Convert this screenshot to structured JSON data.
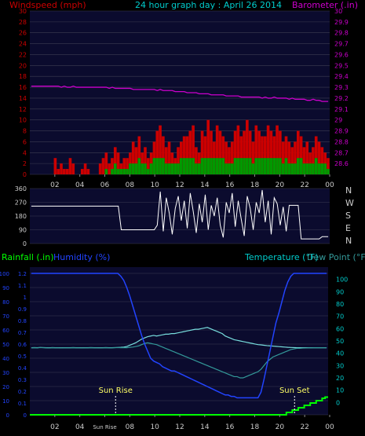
{
  "top": {
    "left_axis_label": "Windspeed (mph)",
    "title": "24 hour graph day : April 26 2014",
    "right_axis_label": "Barometer (.in)"
  },
  "bottom": {
    "rain_label": "Rainfall (.in)",
    "humidity_label": "Humidity (%)",
    "temp_label": "Temperature (°F)",
    "dew_label": "Dew Point (°F)",
    "sunrise_label": "Sun Rise",
    "sunset_label": "Sun Set"
  },
  "x_ticks": [
    "02",
    "04",
    "06",
    "08",
    "10",
    "12",
    "14",
    "16",
    "18",
    "20",
    "22",
    "00"
  ],
  "x_tick_special": "Sun Rise",
  "colors": {
    "bg": "#000000",
    "plot_bg": "#0b0b2e",
    "grid": "#3c3c52",
    "wind_label": "#cc0000",
    "title": "#00cccc",
    "baro": "#cc00cc",
    "wind_gust": "#cc0000",
    "wind_avg": "#009900",
    "direction": "#ffffff",
    "rain": "#00ff00",
    "humidity": "#0000cc",
    "humidity_line": "#2244ff",
    "temperature": "#77dddd",
    "dew": "#339999",
    "temp_axis": "#00cccc",
    "axis_text": "#cccccc"
  },
  "chart_data": [
    {
      "type": "area",
      "name": "wind",
      "xlabel": "",
      "ylabel": "Windspeed (mph)",
      "ylim": [
        0,
        30
      ],
      "yticks": [
        0,
        2,
        4,
        6,
        8,
        10,
        12,
        14,
        16,
        18,
        20,
        22,
        24,
        26,
        28,
        30
      ],
      "y2label": "Barometer (.in)",
      "y2lim": [
        28.5,
        30.0
      ],
      "y2ticks": [
        "28.6",
        "28.7",
        "28.8",
        "28.9",
        "29",
        "29.1",
        "29.2",
        "29.3",
        "29.4",
        "29.5",
        "29.6",
        "29.7",
        "29.8",
        "29.9",
        "30"
      ],
      "gust_mph": [
        0,
        0,
        0,
        0,
        0,
        0,
        0,
        0,
        3,
        1,
        2,
        1,
        1,
        3,
        2,
        0,
        0,
        1,
        2,
        1,
        0,
        0,
        0,
        2,
        3,
        4,
        2,
        3,
        5,
        4,
        2,
        3,
        3,
        4,
        6,
        5,
        7,
        4,
        5,
        3,
        4,
        6,
        8,
        9,
        7,
        5,
        6,
        4,
        3,
        5,
        6,
        7,
        7,
        8,
        9,
        5,
        4,
        8,
        7,
        10,
        8,
        6,
        9,
        8,
        7,
        6,
        5,
        6,
        8,
        9,
        7,
        8,
        10,
        8,
        6,
        9,
        8,
        7,
        7,
        9,
        8,
        7,
        9,
        8,
        6,
        7,
        6,
        5,
        6,
        8,
        7,
        5,
        6,
        4,
        5,
        7,
        6,
        5,
        4,
        3
      ],
      "avg_mph": [
        0,
        0,
        0,
        0,
        0,
        0,
        0,
        0,
        0,
        0,
        0,
        0,
        0,
        0,
        0,
        0,
        0,
        0,
        0,
        0,
        0,
        0,
        0,
        0,
        0,
        1,
        0,
        1,
        2,
        1,
        1,
        1,
        1,
        2,
        2,
        2,
        3,
        2,
        2,
        1,
        2,
        3,
        3,
        3,
        3,
        2,
        2,
        2,
        2,
        2,
        3,
        3,
        3,
        3,
        3,
        2,
        2,
        3,
        3,
        3,
        3,
        3,
        3,
        3,
        3,
        2,
        2,
        2,
        3,
        3,
        3,
        3,
        3,
        3,
        2,
        3,
        3,
        3,
        3,
        3,
        3,
        3,
        3,
        3,
        2,
        3,
        2,
        2,
        2,
        3,
        3,
        2,
        2,
        2,
        2,
        3,
        2,
        2,
        2,
        1
      ],
      "barometer_in": [
        29.31,
        29.31,
        29.31,
        29.31,
        29.31,
        29.31,
        29.31,
        29.31,
        29.31,
        29.31,
        29.3,
        29.31,
        29.3,
        29.3,
        29.31,
        29.3,
        29.3,
        29.3,
        29.3,
        29.3,
        29.3,
        29.3,
        29.3,
        29.3,
        29.3,
        29.3,
        29.29,
        29.3,
        29.29,
        29.29,
        29.29,
        29.29,
        29.29,
        29.29,
        29.28,
        29.28,
        29.28,
        29.28,
        29.28,
        29.28,
        29.28,
        29.28,
        29.27,
        29.28,
        29.27,
        29.27,
        29.27,
        29.27,
        29.26,
        29.26,
        29.26,
        29.26,
        29.25,
        29.25,
        29.25,
        29.25,
        29.24,
        29.24,
        29.24,
        29.24,
        29.23,
        29.23,
        29.23,
        29.23,
        29.23,
        29.22,
        29.22,
        29.22,
        29.22,
        29.22,
        29.21,
        29.21,
        29.21,
        29.21,
        29.21,
        29.21,
        29.21,
        29.2,
        29.21,
        29.2,
        29.2,
        29.21,
        29.2,
        29.2,
        29.2,
        29.2,
        29.19,
        29.2,
        29.19,
        29.19,
        29.19,
        29.19,
        29.18,
        29.18,
        29.19,
        29.18,
        29.18,
        29.17,
        29.17,
        29.17
      ]
    },
    {
      "type": "line",
      "name": "wind direction",
      "ylim": [
        0,
        360
      ],
      "yticks": [
        0,
        90,
        180,
        270,
        360
      ],
      "right_labels": [
        "N",
        "W",
        "S",
        "E",
        "N"
      ],
      "direction_deg": [
        245,
        245,
        245,
        245,
        245,
        245,
        245,
        245,
        245,
        245,
        245,
        245,
        245,
        245,
        245,
        245,
        245,
        245,
        245,
        245,
        245,
        245,
        245,
        245,
        245,
        245,
        245,
        245,
        245,
        245,
        90,
        90,
        90,
        90,
        90,
        90,
        90,
        90,
        90,
        90,
        90,
        90,
        120,
        340,
        80,
        300,
        200,
        60,
        230,
        310,
        150,
        280,
        100,
        330,
        210,
        70,
        260,
        140,
        320,
        90,
        250,
        180,
        300,
        120,
        40,
        270,
        200,
        330,
        110,
        280,
        160,
        50,
        310,
        230,
        90,
        270,
        200,
        350,
        140,
        280,
        60,
        300,
        260,
        120,
        240,
        80,
        250,
        250,
        250,
        250,
        30,
        30,
        30,
        30,
        30,
        30,
        30,
        45,
        45,
        45
      ]
    },
    {
      "type": "line",
      "name": "temperature humidity rainfall",
      "left_ylabel": "Rainfall (.in)",
      "rain_ylim": [
        0,
        1.2
      ],
      "rain_yticks": [
        "0",
        "0.1",
        "0.2",
        "0.3",
        "0.4",
        "0.5",
        "0.6",
        "0.7",
        "0.8",
        "0.9",
        "1",
        "1.1",
        "1.2"
      ],
      "humidity_ylim": [
        0,
        100
      ],
      "humidity_yticks": [
        0,
        10,
        20,
        30,
        40,
        50,
        60,
        70,
        80,
        90,
        100
      ],
      "temp_ylim": [
        -10,
        110
      ],
      "temp_yticks": [
        0,
        10,
        20,
        30,
        40,
        50,
        60,
        70,
        80,
        90,
        100
      ],
      "sunrise_hour": 5.9,
      "sunset_hour": 20.3,
      "humidity_pct": [
        100,
        100,
        100,
        100,
        100,
        100,
        100,
        100,
        100,
        100,
        100,
        100,
        100,
        100,
        100,
        100,
        100,
        100,
        100,
        100,
        100,
        100,
        100,
        100,
        100,
        100,
        100,
        100,
        100,
        100,
        98,
        95,
        90,
        84,
        77,
        70,
        63,
        56,
        50,
        45,
        40,
        38,
        37,
        36,
        34,
        33,
        32,
        31,
        31,
        30,
        29,
        28,
        27,
        26,
        25,
        24,
        23,
        22,
        21,
        20,
        19,
        18,
        17,
        16,
        15,
        14,
        14,
        13,
        13,
        12,
        12,
        12,
        12,
        12,
        12,
        12,
        12,
        16,
        25,
        35,
        45,
        55,
        65,
        72,
        80,
        88,
        94,
        98,
        100,
        100,
        100,
        100,
        100,
        100,
        100,
        100,
        100,
        100,
        100,
        100
      ],
      "temperature_f": [
        44.5,
        44.6,
        44.5,
        44.7,
        44.6,
        44.5,
        44.4,
        44.6,
        44.5,
        44.5,
        44.4,
        44.5,
        44.5,
        44.5,
        44.6,
        44.5,
        44.5,
        44.4,
        44.5,
        44.5,
        44.6,
        44.5,
        44.5,
        44.4,
        44.5,
        44.6,
        44.5,
        44.5,
        44.6,
        44.7,
        44.8,
        45,
        45.5,
        46.5,
        47.5,
        48.5,
        50,
        51.5,
        52.5,
        53.5,
        54,
        54.5,
        54,
        54.5,
        55,
        55.5,
        55.5,
        56,
        56,
        56.5,
        57,
        57.5,
        58,
        58.5,
        59,
        59.5,
        59.5,
        60,
        60.5,
        61,
        60,
        59,
        58,
        57,
        56,
        54,
        53,
        52,
        51,
        50.5,
        50,
        49.5,
        49,
        48.5,
        48,
        47.5,
        47,
        46.8,
        46.5,
        46.2,
        46,
        45.8,
        45.6,
        45.4,
        45.2,
        45,
        44.8,
        44.7,
        44.6,
        44.5,
        44.5,
        44.5,
        44.5,
        44.5,
        44.5,
        44.5,
        44.5,
        44.5,
        44.5,
        44.5
      ],
      "dewpoint_f": [
        44.4,
        44.5,
        44.4,
        44.6,
        44.5,
        44.4,
        44.3,
        44.5,
        44.4,
        44.4,
        44.3,
        44.4,
        44.4,
        44.4,
        44.5,
        44.4,
        44.4,
        44.3,
        44.4,
        44.4,
        44.5,
        44.4,
        44.4,
        44.3,
        44.4,
        44.5,
        44.4,
        44.4,
        44.5,
        44.6,
        44.5,
        44.5,
        44.5,
        44.8,
        45,
        45.5,
        46,
        47,
        48,
        48.5,
        48,
        47.5,
        47,
        46,
        45,
        44,
        43,
        42,
        41,
        40,
        39,
        38,
        37,
        36,
        35,
        34,
        33,
        32,
        31,
        30,
        29,
        28,
        27,
        26,
        25,
        24,
        23,
        22,
        21,
        21,
        20,
        20,
        21,
        22,
        23,
        24,
        25,
        27,
        30,
        33,
        35,
        37,
        38,
        39,
        40,
        41,
        42,
        43,
        43.5,
        44,
        44,
        44.2,
        44.3,
        44.4,
        44.4,
        44.5,
        44.5,
        44.5,
        44.5,
        44.5
      ],
      "rainfall_in": [
        0,
        0,
        0,
        0,
        0,
        0,
        0,
        0,
        0,
        0,
        0,
        0,
        0,
        0,
        0,
        0,
        0,
        0,
        0,
        0,
        0,
        0,
        0,
        0,
        0,
        0,
        0,
        0,
        0,
        0,
        0,
        0,
        0,
        0,
        0,
        0,
        0,
        0,
        0,
        0,
        0,
        0,
        0,
        0,
        0,
        0,
        0,
        0,
        0,
        0,
        0,
        0,
        0,
        0,
        0,
        0,
        0,
        0,
        0,
        0,
        0,
        0,
        0,
        0,
        0,
        0,
        0,
        0,
        0,
        0,
        0,
        0,
        0,
        0,
        0,
        0,
        0,
        0,
        0,
        0,
        0,
        0,
        0,
        0,
        0,
        0,
        0.02,
        0.02,
        0.04,
        0.04,
        0.06,
        0.06,
        0.08,
        0.08,
        0.1,
        0.1,
        0.12,
        0.12,
        0.14,
        0.15
      ]
    }
  ]
}
